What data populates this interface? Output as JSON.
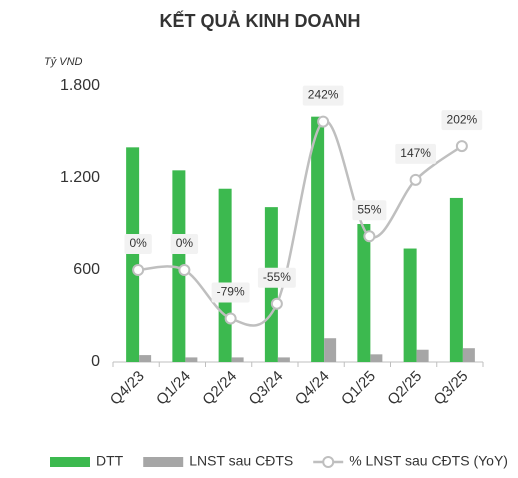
{
  "chart_data": {
    "type": "bar-line",
    "title": "KẾT QUẢ KINH DOANH",
    "y_axis_label": "Tỷ VND",
    "categories": [
      "Q4/23",
      "Q1/24",
      "Q2/24",
      "Q3/24",
      "Q4/24",
      "Q1/25",
      "Q2/25",
      "Q3/25"
    ],
    "series": [
      {
        "name": "DTT",
        "type": "bar",
        "color": "#3cb94f",
        "values": [
          1400,
          1250,
          1130,
          1010,
          1600,
          900,
          740,
          1070
        ]
      },
      {
        "name": "LNST sau CĐTS",
        "type": "bar",
        "color": "#a6a6a6",
        "values": [
          45,
          30,
          30,
          30,
          155,
          50,
          80,
          90
        ]
      },
      {
        "name": "% LNST sau CĐTS (YoY)",
        "type": "line",
        "axis": "y2",
        "color": "#bfbfbf",
        "values": [
          0,
          0,
          -79,
          -55,
          242,
          55,
          147,
          202
        ],
        "value_labels": [
          "0%",
          "0%",
          "-79%",
          "-55%",
          "242%",
          "55%",
          "147%",
          "202%"
        ]
      }
    ],
    "ylim": [
      0,
      1800
    ],
    "yticks": [
      0,
      600,
      {
        "value": 1200,
        "label": "1.200"
      },
      {
        "value": 1800,
        "label": "1.800"
      }
    ],
    "y2lim": [
      -150,
      300
    ],
    "legend": "bottom"
  }
}
